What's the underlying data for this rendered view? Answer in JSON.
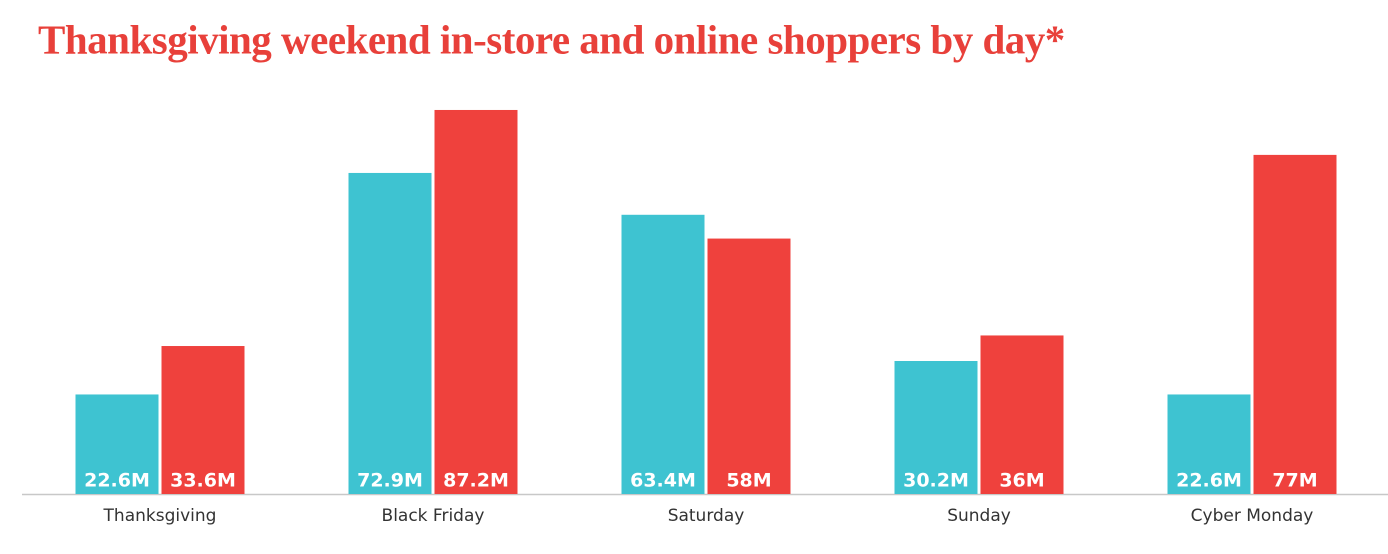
{
  "chart_data": {
    "type": "bar",
    "title": "Thanksgiving weekend in-store and online shoppers by day*",
    "categories": [
      "Thanksgiving",
      "Black Friday",
      "Saturday",
      "Sunday",
      "Cyber Monday"
    ],
    "series": [
      {
        "color": "#3ec3d1",
        "values": [
          22.6,
          72.9,
          63.4,
          30.2,
          22.6
        ],
        "value_labels": [
          "22.6M",
          "72.9M",
          "63.4M",
          "30.2M",
          "22.6M"
        ]
      },
      {
        "color": "#ef413d",
        "values": [
          33.6,
          87.2,
          58,
          36,
          77
        ],
        "value_labels": [
          "33.6M",
          "87.2M",
          "58M",
          "36M",
          "77M"
        ]
      }
    ],
    "ylim": [
      0,
      100
    ]
  }
}
